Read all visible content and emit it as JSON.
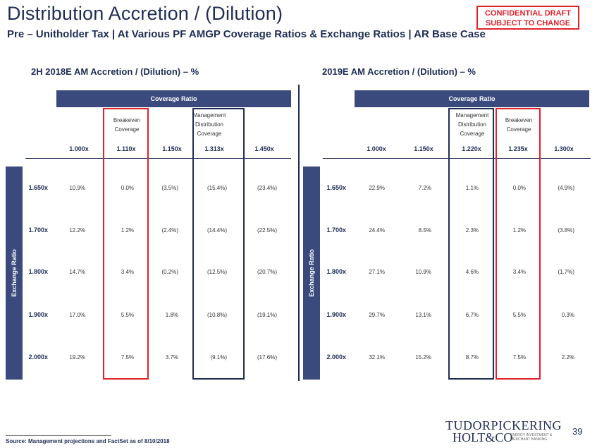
{
  "header": {
    "title": "Distribution Accretion / (Dilution)",
    "subtitle": "Pre – Unitholder Tax | At Various PF AMGP Coverage Ratios & Exchange Ratios | AR Base Case",
    "confidential": "CONFIDENTIAL DRAFT\nSUBJECT TO CHANGE"
  },
  "left": {
    "title": "2H 2018E AM Accretion / (Dilution) – %",
    "coverage_label": "Coverage Ratio",
    "exchange_label": "Exchange Ratio",
    "col_subs": [
      "",
      "Breakeven\nCoverage",
      "",
      "Management\nDistribution\nCoverage",
      ""
    ],
    "cols": [
      "1.000x",
      "1.110x",
      "1.150x",
      "1.313x",
      "1.450x"
    ],
    "rows": [
      {
        "label": "1.650x",
        "values": [
          "10.9%",
          "0.0%",
          "(3.5%)",
          "(15.4%)",
          "(23.4%)"
        ]
      },
      {
        "label": "1.700x",
        "values": [
          "12.2%",
          "1.2%",
          "(2.4%)",
          "(14.4%)",
          "(22.5%)"
        ]
      },
      {
        "label": "1.800x",
        "values": [
          "14.7%",
          "3.4%",
          "(0.2%)",
          "(12.5%)",
          "(20.7%)"
        ]
      },
      {
        "label": "1.900x",
        "values": [
          "17.0%",
          "5.5%",
          "1.8%",
          "(10.8%)",
          "(19.1%)"
        ]
      },
      {
        "label": "2.000x",
        "values": [
          "19.2%",
          "7.5%",
          "3.7%",
          "(9.1%)",
          "(17.6%)"
        ]
      }
    ]
  },
  "right": {
    "title": "2019E AM Accretion / (Dilution) – %",
    "coverage_label": "Coverage Ratio",
    "exchange_label": "Exchange Ratio",
    "col_subs": [
      "",
      "",
      "Management\nDistribution\nCoverage",
      "Breakeven\nCoverage",
      ""
    ],
    "cols": [
      "1.000x",
      "1.150x",
      "1.220x",
      "1.235x",
      "1.300x"
    ],
    "rows": [
      {
        "label": "1.650x",
        "values": [
          "22.9%",
          "7.2%",
          "1.1%",
          "0.0%",
          "(4.9%)"
        ]
      },
      {
        "label": "1.700x",
        "values": [
          "24.4%",
          "8.5%",
          "2.3%",
          "1.2%",
          "(3.8%)"
        ]
      },
      {
        "label": "1.800x",
        "values": [
          "27.1%",
          "10.9%",
          "4.6%",
          "3.4%",
          "(1.7%)"
        ]
      },
      {
        "label": "1.900x",
        "values": [
          "29.7%",
          "13.1%",
          "6.7%",
          "5.5%",
          "0.3%"
        ]
      },
      {
        "label": "2.000x",
        "values": [
          "32.1%",
          "15.2%",
          "8.7%",
          "7.5%",
          "2.2%"
        ]
      }
    ]
  },
  "footer": {
    "source": "Source: Management projections and FactSet as of 8/10/2018",
    "page_number": "39",
    "logo_line1": "TUDORPICKERING",
    "logo_line2": "HOLT&CO",
    "logo_tag": "ENERGY INVESTMENT & MERCHANT BANKING"
  },
  "colors": {
    "navy": "#1f2d55",
    "header_fill": "#3a4a7c",
    "highlight_red": "#e0222b"
  }
}
